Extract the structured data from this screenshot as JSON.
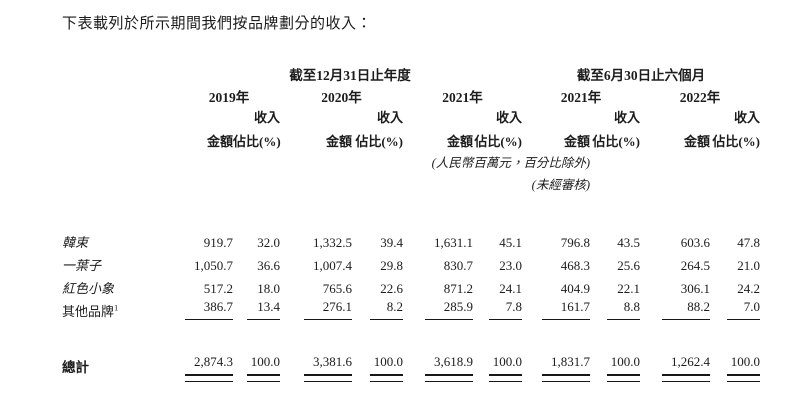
{
  "title": "下表載列於所示期間我們按品牌劃分的收入：",
  "colors": {
    "background": "#ffffff",
    "text": "#1c1c1c",
    "rule": "#171717"
  },
  "table": {
    "group_headers": [
      {
        "label": "截至12月31日止年度",
        "year_span": 3
      },
      {
        "label": "截至6月30日止六個月",
        "year_span": 2
      }
    ],
    "years": [
      "2019年",
      "2020年",
      "2021年",
      "2021年",
      "2022年"
    ],
    "sub_headers": {
      "revenue": "收入",
      "amount": "金額",
      "share": "佔比(%)"
    },
    "notes": [
      "(人民幣百萬元，百分比除外)",
      "(未經審核)"
    ],
    "rows": [
      {
        "brand": "韓束",
        "italic": true,
        "sup": "",
        "values": [
          "919.7",
          "32.0",
          "1,332.5",
          "39.4",
          "1,631.1",
          "45.1",
          "796.8",
          "43.5",
          "603.6",
          "47.8"
        ]
      },
      {
        "brand": "一葉子",
        "italic": true,
        "sup": "",
        "values": [
          "1,050.7",
          "36.6",
          "1,007.4",
          "29.8",
          "830.7",
          "23.0",
          "468.3",
          "25.6",
          "264.5",
          "21.0"
        ]
      },
      {
        "brand": "紅色小象",
        "italic": true,
        "sup": "",
        "values": [
          "517.2",
          "18.0",
          "765.6",
          "22.6",
          "871.2",
          "24.1",
          "404.9",
          "22.1",
          "306.1",
          "24.2"
        ]
      },
      {
        "brand": "其他品牌",
        "italic": false,
        "sup": "1",
        "values": [
          "386.7",
          "13.4",
          "276.1",
          "8.2",
          "285.9",
          "7.8",
          "161.7",
          "8.8",
          "88.2",
          "7.0"
        ]
      }
    ],
    "total": {
      "label": "總計",
      "values": [
        "2,874.3",
        "100.0",
        "3,381.6",
        "100.0",
        "3,618.9",
        "100.0",
        "1,831.7",
        "100.0",
        "1,262.4",
        "100.0"
      ]
    }
  }
}
